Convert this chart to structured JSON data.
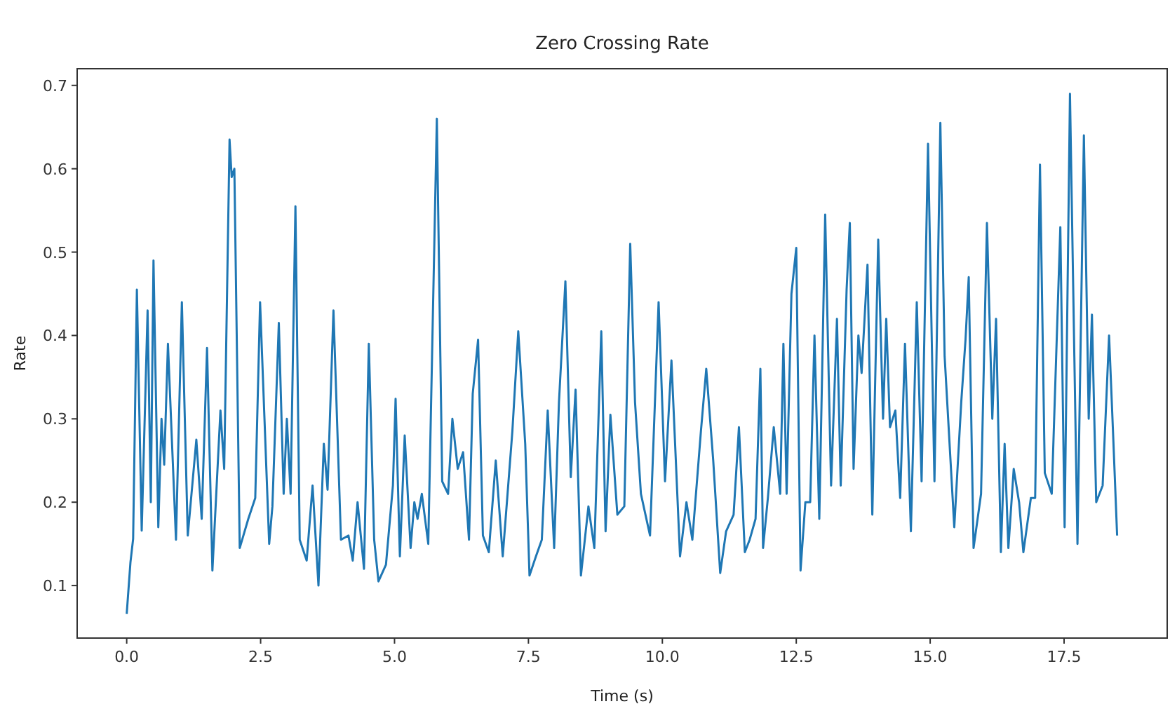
{
  "chart_data": {
    "type": "line",
    "title": "Zero Crossing Rate",
    "xlabel": "Time (s)",
    "ylabel": "Rate",
    "xlim": [
      -0.925,
      19.425
    ],
    "ylim": [
      0.037,
      0.72
    ],
    "xticks": [
      {
        "value": 0,
        "label": "0.0"
      },
      2.5,
      {
        "value": 5,
        "label": "5.0"
      },
      7.5,
      {
        "value": 10,
        "label": "10.0"
      },
      12.5,
      {
        "value": 15,
        "label": "15.0"
      },
      17.5
    ],
    "yticks": [
      0.1,
      0.2,
      0.3,
      0.4,
      0.5,
      0.6,
      0.7
    ],
    "grid": false,
    "series": [
      {
        "color": "#1f77b4",
        "x": [
          0,
          0.07,
          0.12,
          0.19,
          0.28,
          0.39,
          0.45,
          0.5,
          0.59,
          0.65,
          0.7,
          0.77,
          0.92,
          1.03,
          1.14,
          1.3,
          1.4,
          1.5,
          1.6,
          1.75,
          1.82,
          1.92,
          1.96,
          2.01,
          2.11,
          2.27,
          2.4,
          2.49,
          2.66,
          2.72,
          2.84,
          2.93,
          2.99,
          3.06,
          3.15,
          3.23,
          3.36,
          3.47,
          3.58,
          3.68,
          3.75,
          3.86,
          4.0,
          4.14,
          4.22,
          4.31,
          4.43,
          4.52,
          4.62,
          4.7,
          4.84,
          4.97,
          5.02,
          5.1,
          5.19,
          5.3,
          5.37,
          5.43,
          5.51,
          5.63,
          5.79,
          5.89,
          6.0,
          6.08,
          6.18,
          6.28,
          6.39,
          6.46,
          6.56,
          6.65,
          6.76,
          6.89,
          7.02,
          7.2,
          7.31,
          7.44,
          7.52,
          7.64,
          7.75,
          7.86,
          7.98,
          8.07,
          8.19,
          8.29,
          8.38,
          8.48,
          8.62,
          8.73,
          8.86,
          8.94,
          9.03,
          9.16,
          9.29,
          9.4,
          9.49,
          9.6,
          9.77,
          9.93,
          10.05,
          10.17,
          10.33,
          10.45,
          10.56,
          10.72,
          10.82,
          10.95,
          11.08,
          11.19,
          11.33,
          11.43,
          11.54,
          11.63,
          11.74,
          11.83,
          11.88,
          11.97,
          12.08,
          12.2,
          12.26,
          12.32,
          12.41,
          12.5,
          12.58,
          12.67,
          12.76,
          12.84,
          12.93,
          13.04,
          13.15,
          13.26,
          13.33,
          13.44,
          13.5,
          13.57,
          13.66,
          13.72,
          13.83,
          13.92,
          14.03,
          14.12,
          14.18,
          14.25,
          14.35,
          14.44,
          14.53,
          14.64,
          14.75,
          14.84,
          14.96,
          15.08,
          15.19,
          15.27,
          15.45,
          15.58,
          15.66,
          15.72,
          15.81,
          15.95,
          16.06,
          16.16,
          16.23,
          16.32,
          16.39,
          16.46,
          16.56,
          16.66,
          16.74,
          16.88,
          16.96,
          17.05,
          17.14,
          17.27,
          17.43,
          17.51,
          17.61,
          17.75,
          17.87,
          17.96,
          18.02,
          18.1,
          18.22,
          18.34,
          18.41,
          18.49
        ],
        "values": [
          0.066,
          0.128,
          0.156,
          0.455,
          0.166,
          0.43,
          0.2,
          0.49,
          0.17,
          0.3,
          0.245,
          0.39,
          0.155,
          0.44,
          0.16,
          0.275,
          0.18,
          0.385,
          0.118,
          0.31,
          0.24,
          0.635,
          0.59,
          0.6,
          0.145,
          0.18,
          0.205,
          0.44,
          0.15,
          0.195,
          0.415,
          0.21,
          0.3,
          0.21,
          0.555,
          0.155,
          0.13,
          0.22,
          0.1,
          0.27,
          0.215,
          0.43,
          0.155,
          0.16,
          0.13,
          0.2,
          0.12,
          0.39,
          0.155,
          0.105,
          0.125,
          0.22,
          0.324,
          0.135,
          0.28,
          0.145,
          0.2,
          0.18,
          0.21,
          0.15,
          0.66,
          0.225,
          0.21,
          0.3,
          0.24,
          0.26,
          0.155,
          0.33,
          0.395,
          0.16,
          0.14,
          0.25,
          0.135,
          0.285,
          0.405,
          0.27,
          0.112,
          0.135,
          0.155,
          0.31,
          0.145,
          0.32,
          0.465,
          0.23,
          0.335,
          0.112,
          0.195,
          0.145,
          0.405,
          0.165,
          0.305,
          0.185,
          0.195,
          0.51,
          0.32,
          0.21,
          0.16,
          0.44,
          0.225,
          0.37,
          0.135,
          0.2,
          0.155,
          0.285,
          0.36,
          0.25,
          0.115,
          0.165,
          0.185,
          0.29,
          0.14,
          0.155,
          0.18,
          0.36,
          0.145,
          0.205,
          0.29,
          0.21,
          0.39,
          0.21,
          0.45,
          0.505,
          0.118,
          0.2,
          0.2,
          0.4,
          0.18,
          0.545,
          0.22,
          0.42,
          0.22,
          0.455,
          0.535,
          0.24,
          0.4,
          0.355,
          0.485,
          0.185,
          0.515,
          0.3,
          0.42,
          0.29,
          0.31,
          0.205,
          0.39,
          0.165,
          0.44,
          0.225,
          0.63,
          0.225,
          0.655,
          0.375,
          0.17,
          0.32,
          0.395,
          0.47,
          0.145,
          0.21,
          0.535,
          0.3,
          0.42,
          0.14,
          0.27,
          0.145,
          0.24,
          0.2,
          0.14,
          0.205,
          0.205,
          0.605,
          0.235,
          0.21,
          0.53,
          0.17,
          0.69,
          0.15,
          0.64,
          0.3,
          0.425,
          0.2,
          0.22,
          0.4,
          0.29,
          0.16
        ]
      }
    ]
  }
}
